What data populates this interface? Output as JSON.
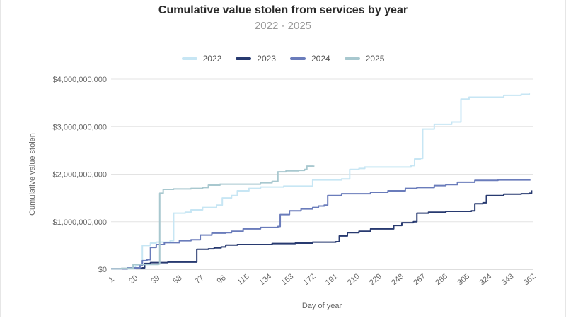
{
  "chart_data": {
    "type": "line",
    "title": "Cumulative value stolen from services by year",
    "subtitle": "2022 - 2025",
    "xlabel": "Day of year",
    "ylabel": "Cumulative value stolen",
    "xlim": [
      1,
      365
    ],
    "ylim": [
      0,
      4000000000
    ],
    "x_ticks": [
      1,
      20,
      39,
      58,
      77,
      96,
      115,
      134,
      153,
      172,
      191,
      210,
      229,
      248,
      267,
      286,
      305,
      324,
      343,
      362
    ],
    "y_ticks": [
      {
        "value": 0,
        "label": "$0"
      },
      {
        "value": 1000000000,
        "label": "$1,000,000,000"
      },
      {
        "value": 2000000000,
        "label": "$2,000,000,000"
      },
      {
        "value": 3000000000,
        "label": "$3,000,000,000"
      },
      {
        "value": 4000000000,
        "label": "$4,000,000,000"
      }
    ],
    "grid": true,
    "legend_position": "top",
    "series": [
      {
        "name": "2022",
        "color": "#c7e6f4",
        "points": [
          [
            1,
            10000000
          ],
          [
            22,
            80000000
          ],
          [
            27,
            100000000
          ],
          [
            28,
            500000000
          ],
          [
            35,
            550000000
          ],
          [
            40,
            570000000
          ],
          [
            52,
            600000000
          ],
          [
            55,
            1180000000
          ],
          [
            65,
            1200000000
          ],
          [
            70,
            1250000000
          ],
          [
            80,
            1300000000
          ],
          [
            92,
            1350000000
          ],
          [
            97,
            1500000000
          ],
          [
            105,
            1550000000
          ],
          [
            110,
            1650000000
          ],
          [
            120,
            1700000000
          ],
          [
            130,
            1730000000
          ],
          [
            150,
            1750000000
          ],
          [
            175,
            1880000000
          ],
          [
            200,
            1900000000
          ],
          [
            207,
            2100000000
          ],
          [
            215,
            2120000000
          ],
          [
            220,
            2150000000
          ],
          [
            260,
            2180000000
          ],
          [
            263,
            2320000000
          ],
          [
            268,
            2330000000
          ],
          [
            270,
            2950000000
          ],
          [
            280,
            3050000000
          ],
          [
            295,
            3100000000
          ],
          [
            302,
            3100000000
          ],
          [
            303,
            3580000000
          ],
          [
            310,
            3620000000
          ],
          [
            340,
            3660000000
          ],
          [
            355,
            3680000000
          ],
          [
            362,
            3700000000
          ]
        ]
      },
      {
        "name": "2023",
        "color": "#283a70",
        "points": [
          [
            1,
            10000000
          ],
          [
            15,
            20000000
          ],
          [
            28,
            30000000
          ],
          [
            30,
            120000000
          ],
          [
            35,
            140000000
          ],
          [
            50,
            150000000
          ],
          [
            73,
            150000000
          ],
          [
            75,
            420000000
          ],
          [
            85,
            430000000
          ],
          [
            90,
            450000000
          ],
          [
            96,
            470000000
          ],
          [
            100,
            510000000
          ],
          [
            110,
            520000000
          ],
          [
            140,
            540000000
          ],
          [
            160,
            550000000
          ],
          [
            175,
            570000000
          ],
          [
            195,
            580000000
          ],
          [
            198,
            700000000
          ],
          [
            205,
            770000000
          ],
          [
            215,
            800000000
          ],
          [
            225,
            850000000
          ],
          [
            245,
            920000000
          ],
          [
            252,
            980000000
          ],
          [
            262,
            1000000000
          ],
          [
            265,
            1180000000
          ],
          [
            275,
            1200000000
          ],
          [
            290,
            1220000000
          ],
          [
            312,
            1230000000
          ],
          [
            315,
            1380000000
          ],
          [
            322,
            1400000000
          ],
          [
            325,
            1550000000
          ],
          [
            340,
            1580000000
          ],
          [
            355,
            1590000000
          ],
          [
            362,
            1600000000
          ],
          [
            364,
            1660000000
          ]
        ]
      },
      {
        "name": "2024",
        "color": "#6a7cbb",
        "points": [
          [
            1,
            10000000
          ],
          [
            15,
            30000000
          ],
          [
            26,
            80000000
          ],
          [
            28,
            180000000
          ],
          [
            32,
            200000000
          ],
          [
            35,
            460000000
          ],
          [
            40,
            520000000
          ],
          [
            47,
            560000000
          ],
          [
            60,
            600000000
          ],
          [
            70,
            620000000
          ],
          [
            78,
            720000000
          ],
          [
            88,
            760000000
          ],
          [
            100,
            770000000
          ],
          [
            105,
            800000000
          ],
          [
            115,
            850000000
          ],
          [
            130,
            880000000
          ],
          [
            145,
            900000000
          ],
          [
            147,
            1150000000
          ],
          [
            155,
            1230000000
          ],
          [
            165,
            1270000000
          ],
          [
            175,
            1300000000
          ],
          [
            180,
            1330000000
          ],
          [
            185,
            1350000000
          ],
          [
            188,
            1550000000
          ],
          [
            200,
            1590000000
          ],
          [
            225,
            1620000000
          ],
          [
            240,
            1650000000
          ],
          [
            255,
            1700000000
          ],
          [
            265,
            1720000000
          ],
          [
            280,
            1760000000
          ],
          [
            290,
            1780000000
          ],
          [
            300,
            1830000000
          ],
          [
            315,
            1870000000
          ],
          [
            335,
            1880000000
          ],
          [
            363,
            1880000000
          ]
        ]
      },
      {
        "name": "2025",
        "color": "#a8c8cf",
        "points": [
          [
            1,
            10000000
          ],
          [
            10,
            20000000
          ],
          [
            20,
            100000000
          ],
          [
            42,
            110000000
          ],
          [
            43,
            1600000000
          ],
          [
            46,
            1680000000
          ],
          [
            55,
            1690000000
          ],
          [
            70,
            1700000000
          ],
          [
            80,
            1720000000
          ],
          [
            85,
            1770000000
          ],
          [
            95,
            1790000000
          ],
          [
            130,
            1820000000
          ],
          [
            140,
            1850000000
          ],
          [
            145,
            2050000000
          ],
          [
            152,
            2070000000
          ],
          [
            163,
            2080000000
          ],
          [
            168,
            2100000000
          ],
          [
            170,
            2170000000
          ],
          [
            176,
            2180000000
          ]
        ]
      }
    ]
  }
}
